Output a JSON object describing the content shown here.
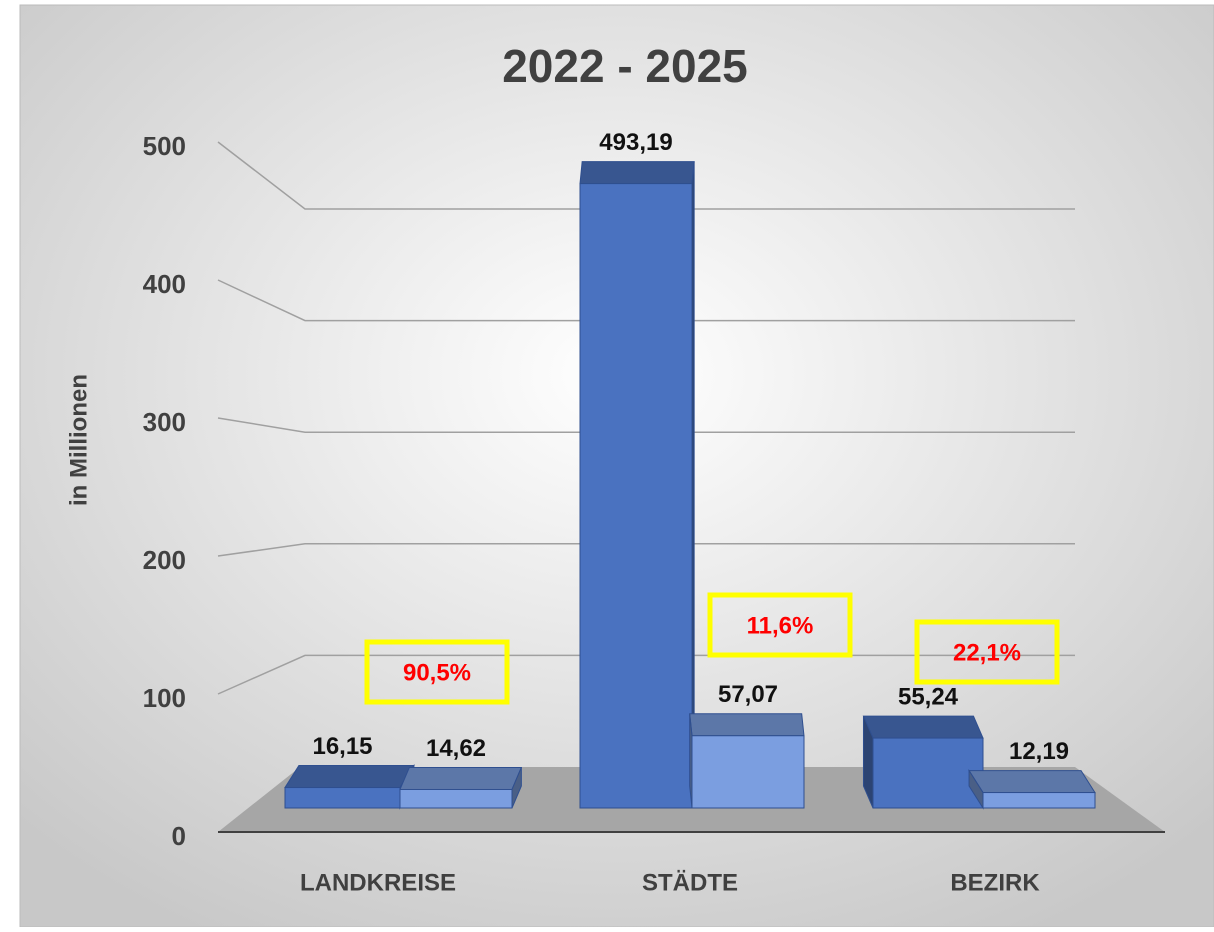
{
  "chart_data": {
    "type": "bar3d",
    "title": "2022 - 2025",
    "ylabel": "in Millionen",
    "categories": [
      "LANDKREISE",
      "STÄDTE",
      "BEZIRK"
    ],
    "series": [
      {
        "color": "#4a72c0",
        "values": [
          16.15,
          493.19,
          55.24
        ],
        "value_labels": [
          "16,15",
          "493,19",
          "55,24"
        ]
      },
      {
        "color": "#7b9ee0",
        "values": [
          14.62,
          57.07,
          12.19
        ],
        "value_labels": [
          "14,62",
          "57,07",
          "12,19"
        ]
      }
    ],
    "annotations": [
      "90,5%",
      "11,6%",
      "22,1%"
    ],
    "ylim": [
      0,
      500
    ],
    "yticks": [
      0,
      100,
      200,
      300,
      400,
      500
    ],
    "grid": true
  }
}
